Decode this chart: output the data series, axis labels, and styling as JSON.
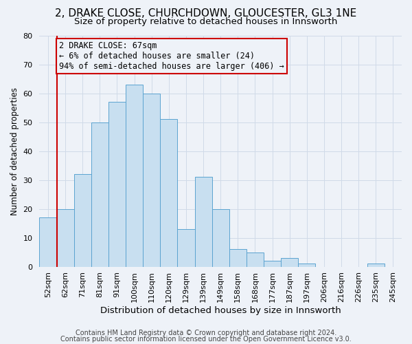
{
  "title1": "2, DRAKE CLOSE, CHURCHDOWN, GLOUCESTER, GL3 1NE",
  "title2": "Size of property relative to detached houses in Innsworth",
  "xlabel": "Distribution of detached houses by size in Innsworth",
  "ylabel": "Number of detached properties",
  "bar_labels": [
    "52sqm",
    "62sqm",
    "71sqm",
    "81sqm",
    "91sqm",
    "100sqm",
    "110sqm",
    "120sqm",
    "129sqm",
    "139sqm",
    "149sqm",
    "158sqm",
    "168sqm",
    "177sqm",
    "187sqm",
    "197sqm",
    "206sqm",
    "216sqm",
    "226sqm",
    "235sqm",
    "245sqm"
  ],
  "bar_heights": [
    17,
    20,
    32,
    50,
    57,
    63,
    60,
    51,
    13,
    31,
    20,
    6,
    5,
    2,
    3,
    1,
    0,
    0,
    0,
    1,
    0
  ],
  "bar_color": "#c8dff0",
  "bar_edge_color": "#5ba3d0",
  "vline_x_index": 1,
  "vline_color": "#cc0000",
  "annotation_line1": "2 DRAKE CLOSE: 67sqm",
  "annotation_line2": "← 6% of detached houses are smaller (24)",
  "annotation_line3": "94% of semi-detached houses are larger (406) →",
  "ylim": [
    0,
    80
  ],
  "yticks": [
    0,
    10,
    20,
    30,
    40,
    50,
    60,
    70,
    80
  ],
  "grid_color": "#d0dae8",
  "bg_color": "#eef2f8",
  "footer1": "Contains HM Land Registry data © Crown copyright and database right 2024.",
  "footer2": "Contains public sector information licensed under the Open Government Licence v3.0.",
  "title1_fontsize": 11,
  "title2_fontsize": 9.5,
  "xlabel_fontsize": 9.5,
  "ylabel_fontsize": 8.5,
  "annotation_fontsize": 8.5,
  "tick_fontsize": 8,
  "footer_fontsize": 7
}
